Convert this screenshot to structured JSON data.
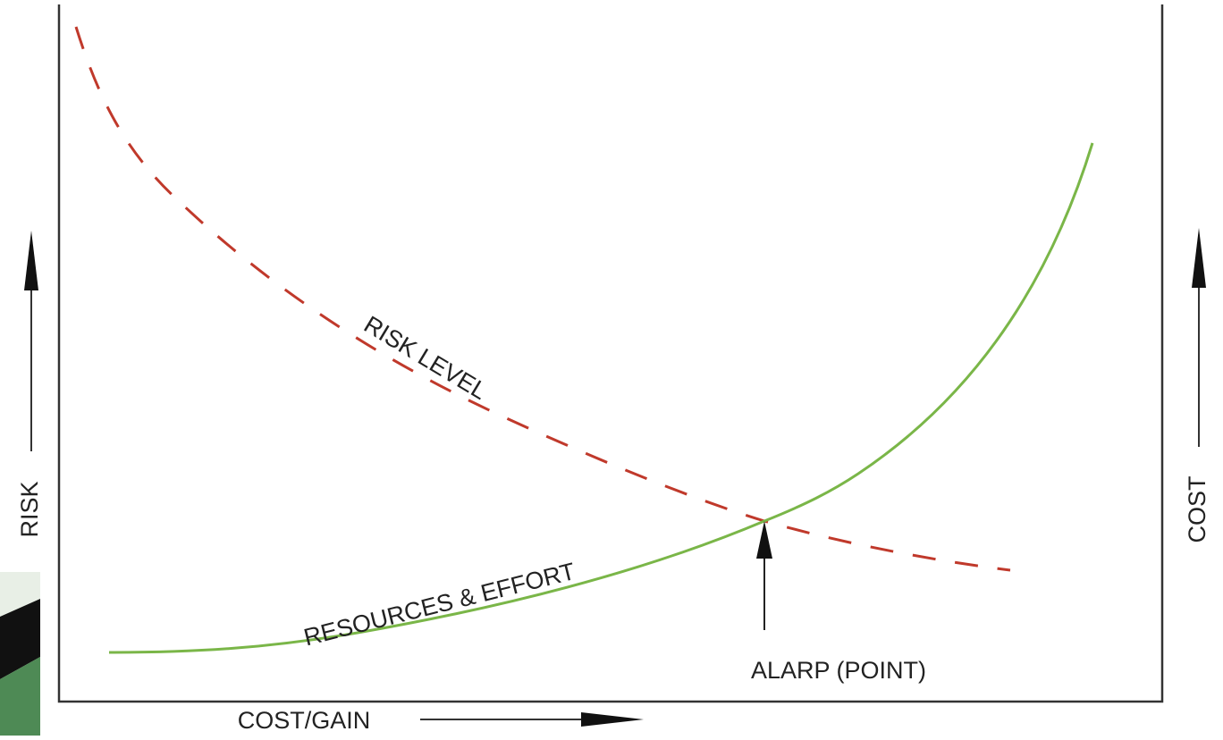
{
  "diagram": {
    "curves": {
      "risk": "RISK LEVEL",
      "effort": "RESOURCES & EFFORT"
    },
    "point": "ALARP (POINT)",
    "axes": {
      "x": "COST/GAIN",
      "left": "RISK",
      "right": "COST"
    }
  }
}
